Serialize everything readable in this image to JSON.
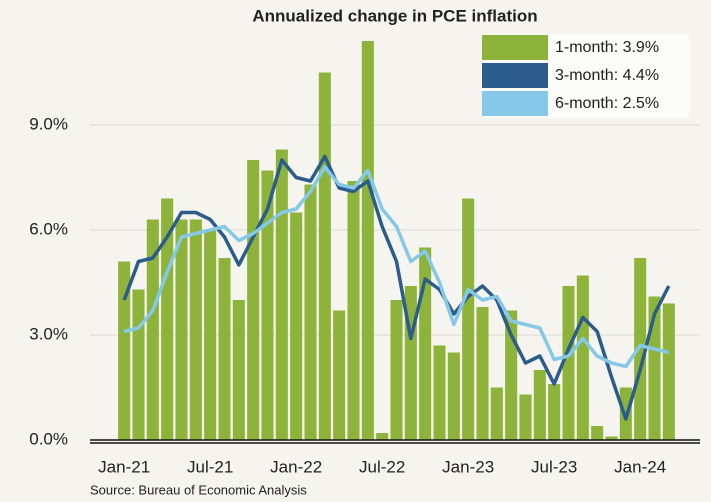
{
  "chart_data": {
    "type": "bar",
    "title": "Annualized change in PCE inflation",
    "source": "Source: Bureau of Economic Analysis",
    "categories": [
      "Jan-21",
      null,
      null,
      null,
      null,
      null,
      "Jul-21",
      null,
      null,
      null,
      null,
      null,
      "Jan-22",
      null,
      null,
      null,
      null,
      null,
      "Jul-22",
      null,
      null,
      null,
      null,
      null,
      "Jan-23",
      null,
      null,
      null,
      null,
      null,
      "Jul-23",
      null,
      null,
      null,
      null,
      null,
      "Jan-24",
      null,
      null
    ],
    "series": [
      {
        "name": "1-month: 3.9%",
        "color": "#8db33a",
        "type": "bar",
        "values": [
          5.1,
          4.3,
          6.3,
          6.9,
          6.3,
          6.3,
          6.0,
          5.2,
          4.0,
          8.0,
          7.7,
          8.3,
          6.5,
          7.3,
          10.5,
          3.7,
          7.4,
          11.4,
          0.2,
          4.0,
          4.4,
          5.5,
          2.7,
          2.5,
          6.9,
          3.8,
          1.5,
          3.7,
          1.3,
          2.0,
          1.6,
          4.4,
          4.7,
          0.4,
          0.1,
          1.5,
          5.2,
          4.1,
          3.9
        ]
      },
      {
        "name": "3-month: 4.4%",
        "color": "#2b5c8a",
        "type": "line",
        "values": [
          4.0,
          5.1,
          5.2,
          5.8,
          6.5,
          6.5,
          6.3,
          5.8,
          5.0,
          5.8,
          6.6,
          8.0,
          7.5,
          7.4,
          8.1,
          7.2,
          7.1,
          7.4,
          6.1,
          5.1,
          2.9,
          4.6,
          4.3,
          3.6,
          4.1,
          4.4,
          4.0,
          3.0,
          2.2,
          2.4,
          1.6,
          2.6,
          3.5,
          3.1,
          1.8,
          0.6,
          2.0,
          3.6,
          4.4
        ]
      },
      {
        "name": "6-month: 2.5%",
        "color": "#86c8e8",
        "type": "line",
        "values": [
          3.1,
          3.2,
          3.7,
          4.8,
          5.8,
          5.9,
          6.0,
          6.1,
          5.7,
          5.9,
          6.2,
          6.5,
          6.6,
          7.1,
          7.8,
          7.3,
          7.2,
          7.7,
          6.6,
          6.1,
          5.1,
          5.4,
          4.5,
          3.3,
          4.3,
          4.0,
          4.1,
          3.4,
          3.3,
          3.2,
          2.3,
          2.4,
          2.9,
          2.4,
          2.2,
          2.1,
          2.7,
          2.6,
          2.5
        ]
      }
    ],
    "ylim": [
      0,
      11.6
    ],
    "yticks": [
      {
        "value": 0,
        "label": "0.0%"
      },
      {
        "value": 3,
        "label": "3.0%"
      },
      {
        "value": 6,
        "label": "6.0%"
      },
      {
        "value": 9,
        "label": "9.0%"
      }
    ],
    "grid": true,
    "legend": "upper right"
  }
}
